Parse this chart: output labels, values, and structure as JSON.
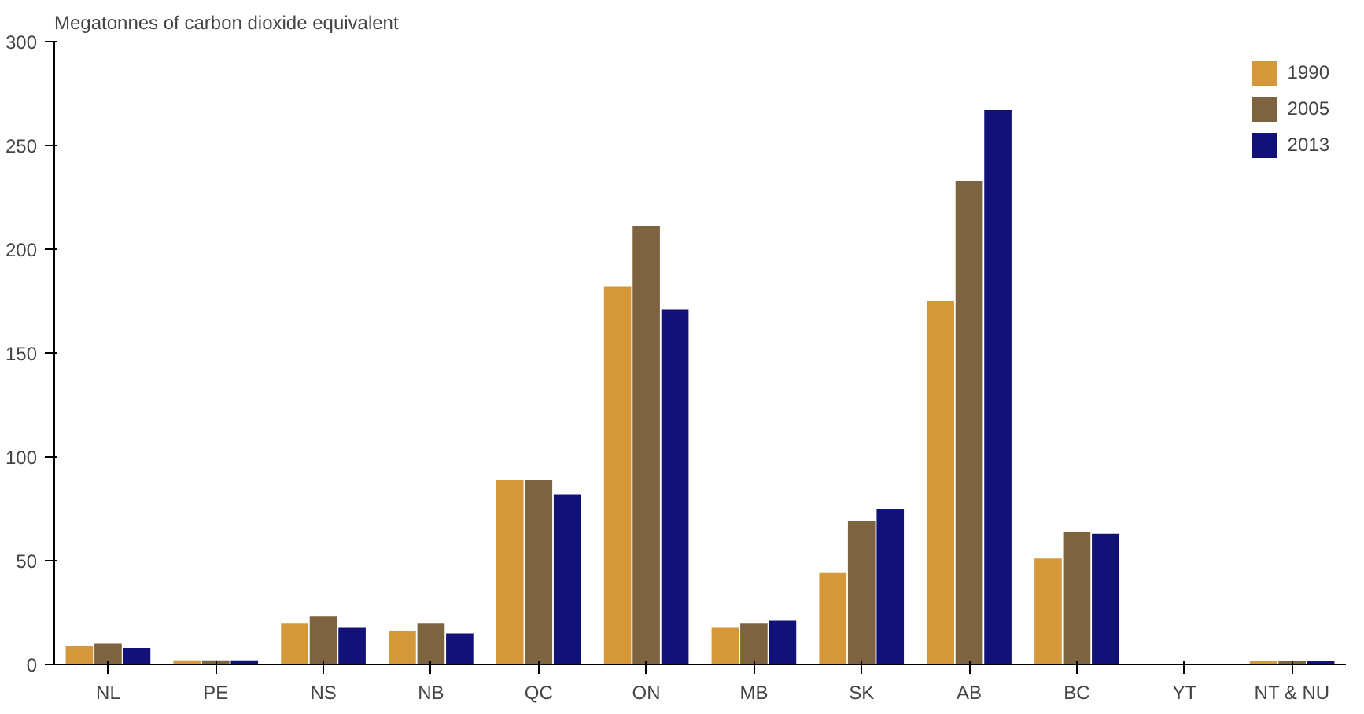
{
  "chart_data": {
    "type": "bar",
    "ylabel": "Megatonnes of carbon dioxide equivalent",
    "categories": [
      "NL",
      "PE",
      "NS",
      "NB",
      "QC",
      "ON",
      "MB",
      "SK",
      "AB",
      "BC",
      "YT",
      "NT & NU"
    ],
    "series": [
      {
        "name": "1990",
        "color": "#d4973a",
        "values": [
          9,
          2,
          20,
          16,
          89,
          182,
          18,
          44,
          175,
          51,
          null,
          1.5
        ]
      },
      {
        "name": "2005",
        "color": "#7d6340",
        "values": [
          10,
          2,
          23,
          20,
          89,
          211,
          20,
          69,
          233,
          64,
          null,
          1.5
        ]
      },
      {
        "name": "2013",
        "color": "#111177",
        "values": [
          8,
          2,
          18,
          15,
          82,
          171,
          21,
          75,
          267,
          63,
          null,
          1.5
        ]
      }
    ],
    "ylim": [
      0,
      300
    ],
    "yticks": [
      0,
      50,
      100,
      150,
      200,
      250,
      300
    ],
    "grid": false,
    "legend": "top right"
  }
}
